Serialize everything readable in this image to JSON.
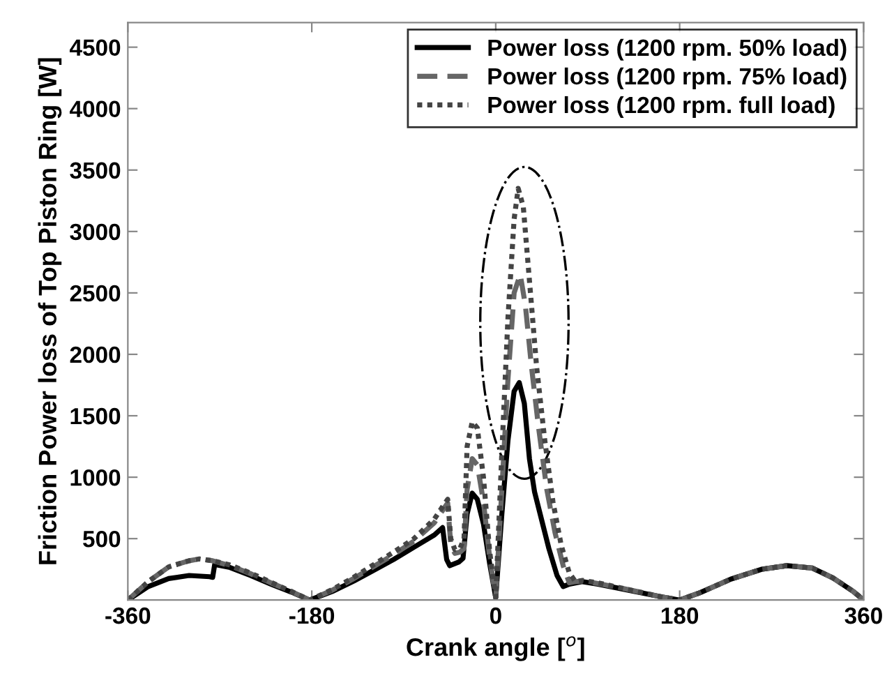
{
  "chart_data": {
    "type": "line",
    "xlabel": "Crank angle [$^{o}$]",
    "ylabel": "Friction Power loss of Top Piston Ring [W]",
    "xlim": [
      -360,
      360
    ],
    "ylim": [
      0,
      4700
    ],
    "xticks": [
      -360,
      -180,
      0,
      180,
      360
    ],
    "yticks": [
      500,
      1000,
      1500,
      2000,
      2500,
      3000,
      3500,
      4000,
      4500
    ],
    "legend": "top right",
    "grid": false,
    "series": [
      {
        "name": "Power loss (1200 rpm. 50% load)",
        "color": "#000000",
        "line_style": "solid",
        "x": [
          -360,
          -340,
          -320,
          -300,
          -280,
          -277,
          -275,
          -260,
          -240,
          -220,
          -200,
          -182,
          -160,
          -140,
          -120,
          -100,
          -80,
          -60,
          -52,
          -48,
          -45,
          -36,
          -32,
          -28,
          -23,
          -18,
          -12,
          -6,
          0,
          6,
          12,
          18,
          23,
          28,
          33,
          38,
          45,
          52,
          60,
          66,
          72,
          85,
          100,
          130,
          160,
          180,
          200,
          230,
          260,
          285,
          310,
          330,
          350,
          360
        ],
        "values": [
          0,
          110,
          175,
          200,
          190,
          185,
          290,
          265,
          200,
          130,
          65,
          0,
          70,
          150,
          240,
          330,
          430,
          530,
          590,
          330,
          280,
          310,
          340,
          700,
          870,
          820,
          620,
          300,
          20,
          700,
          1300,
          1700,
          1770,
          1600,
          1150,
          880,
          650,
          420,
          200,
          110,
          130,
          150,
          130,
          80,
          30,
          0,
          60,
          170,
          250,
          280,
          260,
          180,
          70,
          0
        ]
      },
      {
        "name": "Power loss (1200 rpm. 75% load)",
        "color": "#666666",
        "line_style": "dashed",
        "x": [
          -360,
          -340,
          -320,
          -300,
          -290,
          -277,
          -260,
          -240,
          -220,
          -200,
          -182,
          -160,
          -140,
          -120,
          -100,
          -80,
          -60,
          -52,
          -47,
          -44,
          -40,
          -35,
          -31,
          -28,
          -23,
          -18,
          -12,
          -6,
          0,
          6,
          12,
          18,
          24,
          29,
          35,
          42,
          50,
          58,
          66,
          72,
          78,
          85,
          100,
          130,
          160,
          180,
          200,
          230,
          260,
          285,
          310,
          330,
          350,
          360
        ],
        "values": [
          0,
          150,
          270,
          320,
          335,
          320,
          280,
          215,
          140,
          70,
          0,
          80,
          170,
          270,
          370,
          480,
          630,
          730,
          790,
          450,
          380,
          390,
          420,
          900,
          1150,
          1100,
          800,
          350,
          20,
          900,
          1800,
          2500,
          2650,
          2400,
          1900,
          1400,
          900,
          550,
          280,
          140,
          150,
          155,
          135,
          85,
          30,
          0,
          60,
          170,
          250,
          280,
          260,
          180,
          70,
          0
        ]
      },
      {
        "name": "Power loss (1200 rpm. full load)",
        "color": "#444444",
        "line_style": "dotted",
        "x": [
          -360,
          -340,
          -320,
          -300,
          -290,
          -277,
          -260,
          -240,
          -220,
          -200,
          -182,
          -160,
          -140,
          -120,
          -100,
          -80,
          -60,
          -52,
          -47,
          -44,
          -40,
          -35,
          -31,
          -28,
          -23,
          -18,
          -12,
          -6,
          0,
          6,
          12,
          18,
          22,
          27,
          33,
          40,
          48,
          56,
          64,
          72,
          78,
          85,
          100,
          130,
          160,
          180,
          200,
          230,
          260,
          285,
          310,
          330,
          350,
          360
        ],
        "values": [
          0,
          150,
          270,
          320,
          335,
          320,
          285,
          220,
          145,
          70,
          0,
          85,
          180,
          285,
          390,
          500,
          660,
          760,
          820,
          500,
          410,
          420,
          500,
          1250,
          1450,
          1400,
          1000,
          400,
          20,
          1200,
          2300,
          3100,
          3350,
          3200,
          2600,
          1900,
          1300,
          800,
          450,
          220,
          150,
          160,
          140,
          85,
          30,
          0,
          60,
          170,
          250,
          280,
          260,
          180,
          70,
          0
        ]
      }
    ]
  }
}
